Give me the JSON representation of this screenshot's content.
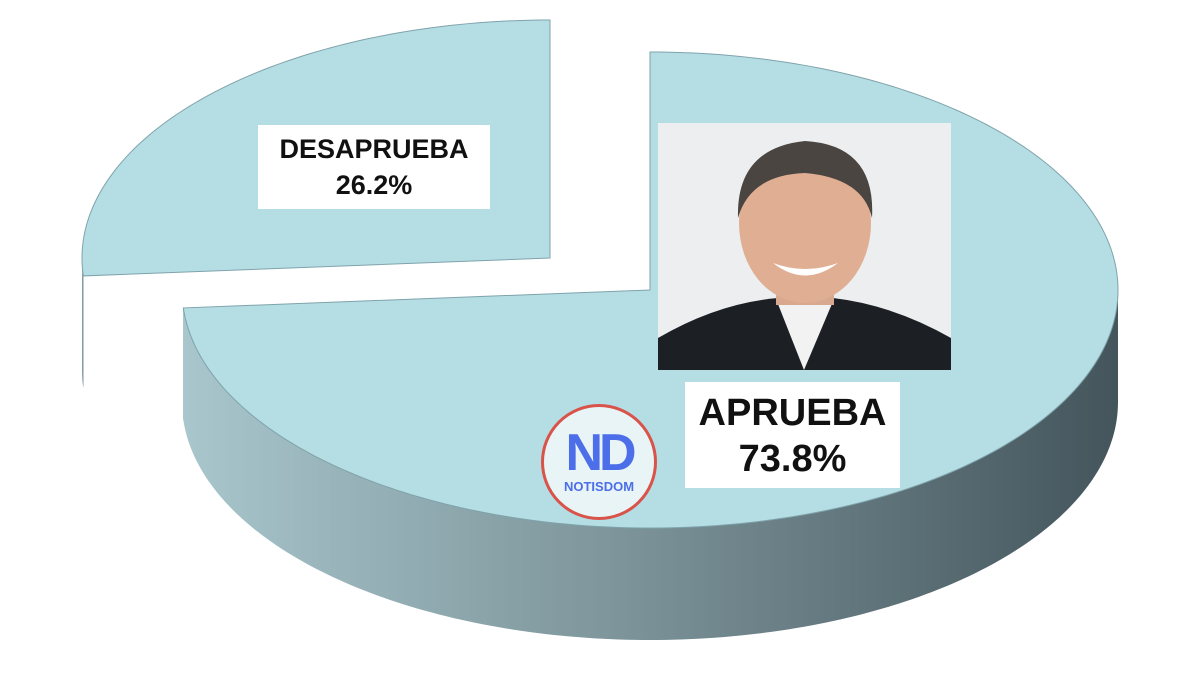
{
  "chart_data": {
    "type": "pie",
    "style": "3d-exploded",
    "categories": [
      "DESAPRUEBA",
      "APRUEBA"
    ],
    "values": [
      26.2,
      73.8
    ],
    "data_labels": [
      "26.2%",
      "73.8%"
    ],
    "colors": {
      "top": "#b5dde4",
      "side_light": "#9bb8bf",
      "side_dark": "#44555c"
    },
    "exploded": "DESAPRUEBA"
  },
  "logo": {
    "mark": "ND",
    "name": "NOTISDOM",
    "ring_color": "#d9534a",
    "text_color": "#4c6ee8"
  },
  "photo": {
    "description_icon": "person-portrait"
  }
}
